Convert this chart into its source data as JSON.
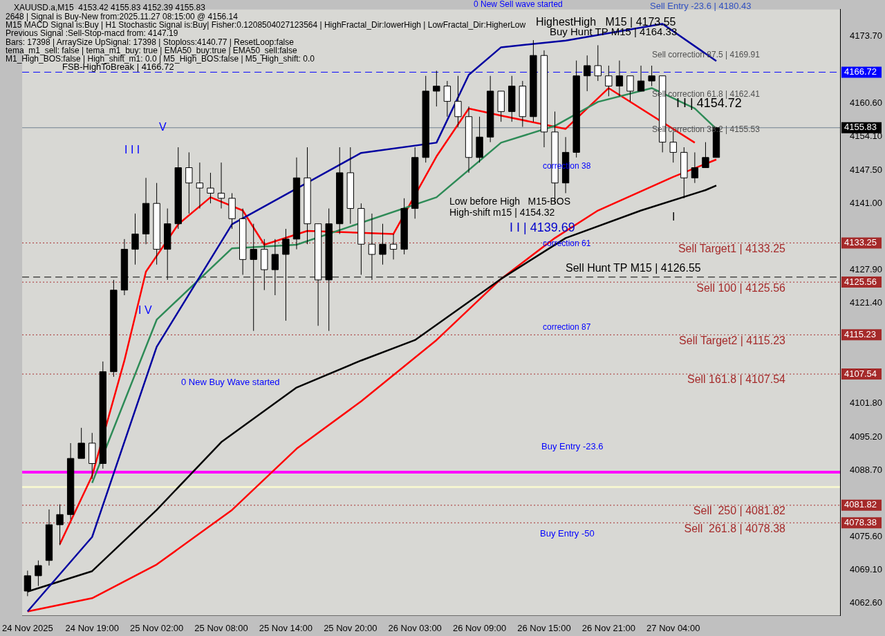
{
  "chart_data": {
    "type": "candlestick",
    "categories": [
      "24 Nov 2025",
      null,
      null,
      null,
      null,
      null,
      "24 Nov 19:00",
      null,
      null,
      null,
      null,
      null,
      "25 Nov 02:00",
      null,
      null,
      null,
      null,
      null,
      "25 Nov 08:00",
      null,
      null,
      null,
      null,
      null,
      "25 Nov 14:00",
      null,
      null,
      null,
      null,
      null,
      "25 Nov 20:00",
      null,
      null,
      null,
      null,
      null,
      "26 Nov 03:00",
      null,
      null,
      null,
      null,
      null,
      "26 Nov 09:00",
      null,
      null,
      null,
      null,
      null,
      "26 Nov 15:00",
      null,
      null,
      null,
      null,
      null,
      "26 Nov 21:00",
      null,
      null,
      null,
      null,
      null,
      "27 Nov 04:00",
      null,
      null,
      null,
      null,
      null,
      null,
      null,
      null,
      null,
      null,
      null,
      null,
      null,
      null,
      null
    ],
    "ohlc": [
      [
        4065,
        4069,
        4064,
        4068
      ],
      [
        4068,
        4071,
        4066,
        4070
      ],
      [
        4071,
        4081,
        4070,
        4078
      ],
      [
        4078,
        4082,
        4074,
        4080
      ],
      [
        4080,
        4094,
        4079,
        4091
      ],
      [
        4091,
        4097,
        4091,
        4094
      ],
      [
        4094,
        4096,
        4087,
        4090
      ],
      [
        4090,
        4110,
        4089,
        4108
      ],
      [
        4108,
        4126,
        4107,
        4124
      ],
      [
        4124,
        4134,
        4123,
        4132
      ],
      [
        4132,
        4139,
        4129,
        4135
      ],
      [
        4135,
        4146,
        4133,
        4141
      ],
      [
        4141,
        4145,
        4129,
        4132
      ],
      [
        4132,
        4140,
        4126,
        4137
      ],
      [
        4137,
        4152,
        4136,
        4148
      ],
      [
        4148,
        4151,
        4139,
        4145
      ],
      [
        4145,
        4149,
        4140,
        4144
      ],
      [
        4144,
        4147,
        4141,
        4143
      ],
      [
        4143,
        4149,
        4140,
        4142
      ],
      [
        4142,
        4143,
        4136,
        4138
      ],
      [
        4138,
        4140,
        4127,
        4130
      ],
      [
        4130,
        4137,
        4116,
        4132
      ],
      [
        4132,
        4134,
        4124,
        4128
      ],
      [
        4128,
        4134,
        4123,
        4131
      ],
      [
        4131,
        4136,
        4118,
        4134
      ],
      [
        4134,
        4150,
        4132,
        4146
      ],
      [
        4146,
        4152,
        4133,
        4137
      ],
      [
        4137,
        4137,
        4117,
        4126
      ],
      [
        4126,
        4140,
        4116,
        4137
      ],
      [
        4137,
        4152,
        4135,
        4147
      ],
      [
        4147,
        4152,
        4137,
        4140
      ],
      [
        4140,
        4141,
        4127,
        4133
      ],
      [
        4133,
        4139,
        4126,
        4131
      ],
      [
        4131,
        4137,
        4129,
        4133
      ],
      [
        4133,
        4135,
        4130,
        4132
      ],
      [
        4132,
        4142,
        4131,
        4140
      ],
      [
        4140,
        4152,
        4138,
        4150
      ],
      [
        4150,
        4166,
        4149,
        4163
      ],
      [
        4163,
        4167,
        4160,
        4164
      ],
      [
        4164,
        4165,
        4158,
        4161
      ],
      [
        4161,
        4166,
        4156,
        4158
      ],
      [
        4158,
        4160,
        4147,
        4150
      ],
      [
        4150,
        4158,
        4149,
        4154
      ],
      [
        4154,
        4166,
        4153,
        4163
      ],
      [
        4163,
        4163,
        4157,
        4159
      ],
      [
        4159,
        4166,
        4157,
        4164
      ],
      [
        4164,
        4165,
        4156,
        4158
      ],
      [
        4158,
        4173,
        4157,
        4170
      ],
      [
        4170,
        4171,
        4152,
        4155
      ],
      [
        4155,
        4159,
        4141,
        4145
      ],
      [
        4145,
        4154,
        4143,
        4151
      ],
      [
        4151,
        4169,
        4150,
        4166
      ],
      [
        4166,
        4170,
        4163,
        4168
      ],
      [
        4168,
        4172,
        4165,
        4166
      ],
      [
        4166,
        4168,
        4162,
        4164
      ],
      [
        4164,
        4169,
        4162,
        4166
      ],
      [
        4166,
        4166,
        4161,
        4163
      ],
      [
        4163,
        4168,
        4163,
        4165
      ],
      [
        4165,
        4168,
        4164,
        4166
      ],
      [
        4166,
        4166,
        4151,
        4153
      ],
      [
        4153,
        4155,
        4149,
        4151
      ],
      [
        4151,
        4152,
        4142,
        4146
      ],
      [
        4146,
        4151,
        4145,
        4148
      ],
      [
        4148,
        4153,
        4148,
        4150
      ],
      [
        4150,
        4156,
        4150,
        4155.83
      ],
      null,
      null,
      null,
      null,
      null,
      null,
      null,
      null,
      null,
      null,
      null
    ],
    "series": [
      {
        "type": "line",
        "color": "#0000a0",
        "values": [
          4061.0,
          null,
          null,
          null,
          null,
          null,
          4075.6,
          null,
          null,
          null,
          null,
          null,
          4112.9,
          null,
          null,
          null,
          null,
          null,
          null,
          4136.9,
          null,
          null,
          null,
          null,
          null,
          null,
          null,
          null,
          null,
          null,
          null,
          4150.9,
          null,
          null,
          null,
          null,
          null,
          null,
          4152.9,
          null,
          null,
          4166.2,
          null,
          null,
          4171.6,
          null,
          null,
          null,
          null,
          null,
          4172.9,
          null,
          null,
          null,
          null,
          null,
          null,
          null,
          null,
          4176.2,
          null,
          null,
          null,
          null,
          4168.9,
          null,
          null,
          null,
          null,
          null,
          null,
          null,
          null,
          null,
          null,
          null
        ]
      },
      {
        "type": "line",
        "color": "#000000",
        "values": [
          4064.9,
          null,
          null,
          null,
          null,
          null,
          4068.9,
          null,
          null,
          null,
          null,
          null,
          4080.9,
          null,
          null,
          null,
          null,
          null,
          4094.2,
          null,
          null,
          null,
          null,
          null,
          null,
          4104.9,
          null,
          null,
          null,
          null,
          null,
          4110.2,
          null,
          null,
          null,
          null,
          4114.2,
          null,
          null,
          null,
          null,
          null,
          null,
          null,
          4126.2,
          null,
          null,
          null,
          null,
          null,
          4134.2,
          null,
          null,
          null,
          null,
          null,
          null,
          4139.6,
          null,
          null,
          null,
          null,
          null,
          4143.6,
          4144.5,
          null,
          null,
          null,
          null,
          null,
          null,
          null,
          null,
          null,
          null,
          null
        ]
      },
      {
        "type": "line",
        "color": "#ff0000",
        "values": [
          4061.0,
          null,
          null,
          null,
          null,
          null,
          4063.6,
          null,
          null,
          null,
          null,
          null,
          4070.2,
          null,
          null,
          null,
          null,
          null,
          null,
          4080.9,
          null,
          null,
          null,
          null,
          null,
          4092.9,
          null,
          null,
          null,
          null,
          null,
          4102.2,
          null,
          null,
          null,
          null,
          null,
          null,
          4114.2,
          null,
          null,
          null,
          null,
          null,
          4126.2,
          null,
          null,
          null,
          null,
          4134.2,
          null,
          null,
          null,
          4139.6,
          null,
          null,
          null,
          null,
          null,
          null,
          4146.2,
          null,
          null,
          null,
          4149.6,
          null,
          null,
          null,
          null,
          null,
          null,
          null,
          null,
          null,
          null,
          null
        ]
      },
      {
        "type": "line",
        "color": "#2e8b57",
        "values": [
          null,
          null,
          null,
          null,
          null,
          null,
          4086.2,
          null,
          null,
          null,
          null,
          null,
          4118.2,
          null,
          null,
          null,
          null,
          null,
          null,
          4132.2,
          null,
          null,
          null,
          null,
          null,
          4132.9,
          null,
          null,
          null,
          null,
          null,
          null,
          null,
          null,
          null,
          null,
          null,
          null,
          4142.2,
          null,
          null,
          null,
          null,
          null,
          4152.9,
          null,
          null,
          null,
          null,
          4156.2,
          null,
          null,
          null,
          4160.9,
          null,
          null,
          null,
          null,
          4163.6,
          null,
          null,
          null,
          4159.6,
          null,
          4155.6,
          null,
          null,
          null,
          null,
          null,
          null,
          null,
          null,
          null,
          null,
          null
        ]
      },
      {
        "type": "line",
        "color": "#ff0000",
        "values": [
          null,
          null,
          null,
          4074.2,
          null,
          null,
          4087.6,
          null,
          null,
          4110.2,
          null,
          4127.6,
          null,
          null,
          4136.9,
          null,
          null,
          4142.2,
          null,
          null,
          4139.6,
          null,
          4132.9,
          null,
          null,
          null,
          4135.6,
          null,
          null,
          null,
          null,
          null,
          null,
          null,
          4135.0,
          null,
          null,
          null,
          4150.2,
          null,
          null,
          4159.6,
          null,
          null,
          4158.2,
          null,
          null,
          null,
          null,
          null,
          4155.6,
          null,
          null,
          null,
          4163.6,
          null,
          null,
          null,
          null,
          null,
          null,
          null,
          4152.9,
          null,
          null,
          null,
          null,
          null,
          null,
          null,
          null,
          null,
          null,
          null,
          null,
          null
        ]
      }
    ],
    "ylim": [
      4060.2,
      4179.0
    ],
    "yticks": [
      {
        "value": 4062.6,
        "label": "4062.60"
      },
      {
        "value": 4069.1,
        "label": "4069.10"
      },
      {
        "value": 4075.6,
        "label": "4075.60"
      },
      {
        "value": 4088.7,
        "label": "4088.70"
      },
      {
        "value": 4095.2,
        "label": "4095.20"
      },
      {
        "value": 4101.8,
        "label": "4101.80"
      },
      {
        "value": 4121.4,
        "label": "4121.40"
      },
      {
        "value": 4127.9,
        "label": "4127.90"
      },
      {
        "value": 4141.0,
        "label": "4141.00"
      },
      {
        "value": 4147.5,
        "label": "4147.50"
      },
      {
        "value": 4154.1,
        "label": "4154.10"
      },
      {
        "value": 4160.6,
        "label": "4160.60"
      },
      {
        "value": 4173.7,
        "label": "4173.70"
      }
    ],
    "ref_lines": [
      {
        "axis": "y",
        "value": 4166.72,
        "label": "FSB-HighToBreak | 4166.72",
        "color": "#0000ff",
        "line_style": "dashed"
      },
      {
        "axis": "y",
        "value": 4155.83,
        "color": "#708090",
        "line_style": "solid"
      },
      {
        "axis": "y",
        "value": 4133.25,
        "label": "Sell Target1 | 4133.25",
        "color": "#a52a2a",
        "line_style": "dotted"
      },
      {
        "axis": "y",
        "value": 4125.56,
        "label": "Sell 100 | 4125.56",
        "color": "#a52a2a",
        "line_style": "dotted"
      },
      {
        "axis": "y",
        "value": 4115.23,
        "label": "Sell Target2 | 4115.23",
        "color": "#a52a2a",
        "line_style": "dotted"
      },
      {
        "axis": "y",
        "value": 4107.54,
        "label": "Sell 161.8 | 4107.54",
        "color": "#a52a2a",
        "line_style": "dotted"
      },
      {
        "axis": "y",
        "value": 4081.82,
        "label": "Sell  250 | 4081.82",
        "color": "#a52a2a",
        "line_style": "dotted"
      },
      {
        "axis": "y",
        "value": 4078.38,
        "label": "Sell  261.8 | 4078.38",
        "color": "#a52a2a",
        "line_style": "dotted"
      },
      {
        "axis": "y",
        "value": 4126.55,
        "label": "Sell Hunt TP M15 | 4126.55",
        "color": "#000000",
        "line_style": "dashed"
      },
      {
        "axis": "y",
        "value": 4088.3,
        "color": "#ff00ff",
        "line_style": "solid"
      },
      {
        "axis": "y",
        "value": 4085.4,
        "color": "#f5f5d0",
        "line_style": "solid"
      }
    ],
    "annotations": [
      "XAUUSD.a,M15  4153.42 4155.83 4152.39 4155.83",
      "2648 | Signal is Buy-New from:2025.11.27 08:15:00 @ 4156.14",
      "M15 MACD Signal is:Buy | H1 Stochastic Signal is:Buy| Fisher:0.1208504027123564 | HighFractal_Dir:lowerHigh | LowFractal_Dir:HigherLow",
      "Previous Signal :Sell-Stop-macd from: 4147.19",
      "Bars: 17398 | ArraySize UpSignal: 17398 | Stoploss:4140.77 | ResetLoop:false",
      "tema_m1_sell: false | tema_m1_buy: true | EMA50_buy:true | EMA50_sell:false",
      "M1_High_BOS:false | High_shift_m1: 0.0 | M5_High_BOS:false | M5_High_shift: 0.0",
      "HighestHigh   M15 | 4173.55",
      "Buy Hunt TP M15 | 4164.33",
      "Low before High   M15-BOS",
      "High-shift m15 | 4154.32",
      "I I | 4154.72",
      "I I | 4139.69",
      "correction 38",
      "correction 61",
      "correction 87",
      "Sell correction 87.5 | 4169.91",
      "Sell correction 61.8 | 4162.41",
      "Sell correction 38.2 | 4155.53",
      "Sell Entry -23.6 | 4180.43",
      "0 New Sell wave started",
      "0 New Buy Wave started",
      "Buy Entry -23.6",
      "Buy Entry -50",
      "I I I",
      "V",
      "I V",
      "I",
      "4166.72",
      "4155.83",
      "4133.25",
      "4125.56",
      "4115.23",
      "4107.54",
      "4081.82",
      "4078.38"
    ],
    "grid": false,
    "legend": false
  }
}
